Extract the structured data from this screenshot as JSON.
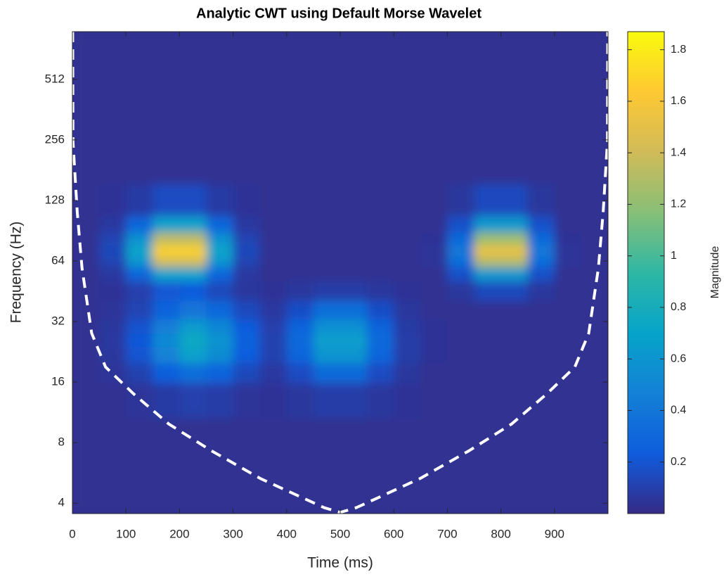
{
  "chart_data": {
    "type": "heatmap",
    "title": "Analytic CWT using Default Morse Wavelet",
    "xlabel": "Time (ms)",
    "ylabel": "Frequency (Hz)",
    "colorbar_label": "Magnitude",
    "xlim": [
      0,
      1000
    ],
    "ylim": [
      3.55,
      884
    ],
    "yscale": "log",
    "xticks": [
      0,
      100,
      200,
      300,
      400,
      500,
      600,
      700,
      800,
      900
    ],
    "yticks": [
      4,
      8,
      16,
      32,
      64,
      128,
      256,
      512
    ],
    "clim": [
      0,
      1.87
    ],
    "cticks": [
      0.2,
      0.4,
      0.6,
      0.8,
      1,
      1.2,
      1.4,
      1.6,
      1.8
    ],
    "colormap": [
      "#352a87",
      "#0f5cdd",
      "#1481d6",
      "#06a4ca",
      "#2eb7a4",
      "#87bf77",
      "#d1bb59",
      "#fec832",
      "#f9fb0e"
    ],
    "x": [
      25,
      75,
      125,
      175,
      225,
      275,
      325,
      375,
      425,
      475,
      525,
      575,
      625,
      675,
      725,
      775,
      825,
      875,
      925,
      975
    ],
    "y": [
      4,
      8,
      14,
      18,
      22,
      26,
      30,
      36,
      46,
      56,
      64,
      72,
      82,
      96,
      120,
      200,
      400,
      800
    ],
    "z": [
      [
        0.03,
        0.03,
        0.03,
        0.03,
        0.03,
        0.03,
        0.03,
        0.03,
        0.03,
        0.03,
        0.03,
        0.03,
        0.03,
        0.03,
        0.03,
        0.03,
        0.03,
        0.03,
        0.03,
        0.03
      ],
      [
        0.03,
        0.03,
        0.03,
        0.03,
        0.03,
        0.03,
        0.03,
        0.03,
        0.03,
        0.03,
        0.03,
        0.03,
        0.03,
        0.03,
        0.03,
        0.03,
        0.03,
        0.03,
        0.03,
        0.03
      ],
      [
        0.03,
        0.03,
        0.05,
        0.08,
        0.1,
        0.09,
        0.05,
        0.04,
        0.06,
        0.09,
        0.09,
        0.06,
        0.04,
        0.03,
        0.03,
        0.03,
        0.03,
        0.03,
        0.03,
        0.03
      ],
      [
        0.03,
        0.05,
        0.11,
        0.25,
        0.35,
        0.28,
        0.14,
        0.07,
        0.16,
        0.32,
        0.32,
        0.16,
        0.06,
        0.03,
        0.03,
        0.03,
        0.03,
        0.03,
        0.03,
        0.03
      ],
      [
        0.03,
        0.06,
        0.2,
        0.48,
        0.68,
        0.54,
        0.24,
        0.11,
        0.29,
        0.6,
        0.6,
        0.29,
        0.09,
        0.04,
        0.03,
        0.03,
        0.03,
        0.03,
        0.03,
        0.03
      ],
      [
        0.03,
        0.07,
        0.22,
        0.53,
        0.75,
        0.59,
        0.27,
        0.11,
        0.32,
        0.67,
        0.67,
        0.32,
        0.09,
        0.04,
        0.03,
        0.03,
        0.03,
        0.03,
        0.03,
        0.03
      ],
      [
        0.03,
        0.06,
        0.19,
        0.45,
        0.64,
        0.51,
        0.23,
        0.1,
        0.28,
        0.57,
        0.57,
        0.28,
        0.08,
        0.04,
        0.03,
        0.03,
        0.03,
        0.03,
        0.03,
        0.03
      ],
      [
        0.03,
        0.05,
        0.12,
        0.28,
        0.39,
        0.31,
        0.15,
        0.07,
        0.17,
        0.35,
        0.35,
        0.17,
        0.06,
        0.03,
        0.03,
        0.03,
        0.03,
        0.03,
        0.03,
        0.03
      ],
      [
        0.03,
        0.04,
        0.1,
        0.21,
        0.23,
        0.14,
        0.06,
        0.04,
        0.06,
        0.09,
        0.09,
        0.06,
        0.04,
        0.03,
        0.06,
        0.15,
        0.15,
        0.06,
        0.03,
        0.03
      ],
      [
        0.03,
        0.07,
        0.3,
        0.69,
        0.69,
        0.3,
        0.07,
        0.03,
        0.03,
        0.03,
        0.03,
        0.03,
        0.03,
        0.03,
        0.18,
        0.63,
        0.63,
        0.18,
        0.03,
        0.03
      ],
      [
        0.03,
        0.12,
        0.61,
        1.43,
        1.43,
        0.61,
        0.12,
        0.03,
        0.03,
        0.03,
        0.03,
        0.03,
        0.03,
        0.05,
        0.35,
        1.32,
        1.32,
        0.35,
        0.05,
        0.03
      ],
      [
        0.03,
        0.14,
        0.71,
        1.68,
        1.68,
        0.71,
        0.14,
        0.03,
        0.03,
        0.03,
        0.03,
        0.03,
        0.03,
        0.05,
        0.41,
        1.54,
        1.54,
        0.41,
        0.05,
        0.03
      ],
      [
        0.03,
        0.12,
        0.58,
        1.35,
        1.35,
        0.58,
        0.12,
        0.03,
        0.03,
        0.03,
        0.03,
        0.03,
        0.03,
        0.04,
        0.33,
        1.24,
        1.24,
        0.33,
        0.04,
        0.03
      ],
      [
        0.03,
        0.07,
        0.3,
        0.69,
        0.69,
        0.3,
        0.07,
        0.03,
        0.03,
        0.03,
        0.03,
        0.03,
        0.03,
        0.03,
        0.18,
        0.63,
        0.63,
        0.18,
        0.03,
        0.03
      ],
      [
        0.03,
        0.04,
        0.08,
        0.16,
        0.16,
        0.08,
        0.04,
        0.03,
        0.03,
        0.03,
        0.03,
        0.03,
        0.03,
        0.03,
        0.06,
        0.15,
        0.15,
        0.06,
        0.03,
        0.03
      ],
      [
        0.03,
        0.03,
        0.03,
        0.03,
        0.03,
        0.03,
        0.03,
        0.03,
        0.03,
        0.03,
        0.03,
        0.03,
        0.03,
        0.03,
        0.03,
        0.03,
        0.03,
        0.03,
        0.03,
        0.03
      ],
      [
        0.03,
        0.03,
        0.03,
        0.03,
        0.03,
        0.03,
        0.03,
        0.03,
        0.03,
        0.03,
        0.03,
        0.03,
        0.03,
        0.03,
        0.03,
        0.03,
        0.03,
        0.03,
        0.03,
        0.03
      ],
      [
        0.03,
        0.03,
        0.03,
        0.03,
        0.03,
        0.03,
        0.03,
        0.03,
        0.03,
        0.03,
        0.03,
        0.03,
        0.03,
        0.03,
        0.03,
        0.03,
        0.03,
        0.03,
        0.03,
        0.03
      ]
    ],
    "coi": {
      "color": "#ffffff",
      "x": [
        0.5,
        1,
        9,
        18,
        36,
        62,
        114,
        180,
        259,
        351,
        470,
        500,
        530,
        649,
        741,
        820,
        886,
        938,
        964,
        982,
        991,
        999,
        999.5
      ],
      "y": [
        884,
        252,
        112,
        59,
        28,
        19,
        14,
        9.9,
        7.3,
        5.3,
        3.8,
        3.6,
        3.8,
        5.3,
        7.3,
        9.9,
        14,
        19,
        28,
        59,
        112,
        252,
        884
      ]
    }
  }
}
